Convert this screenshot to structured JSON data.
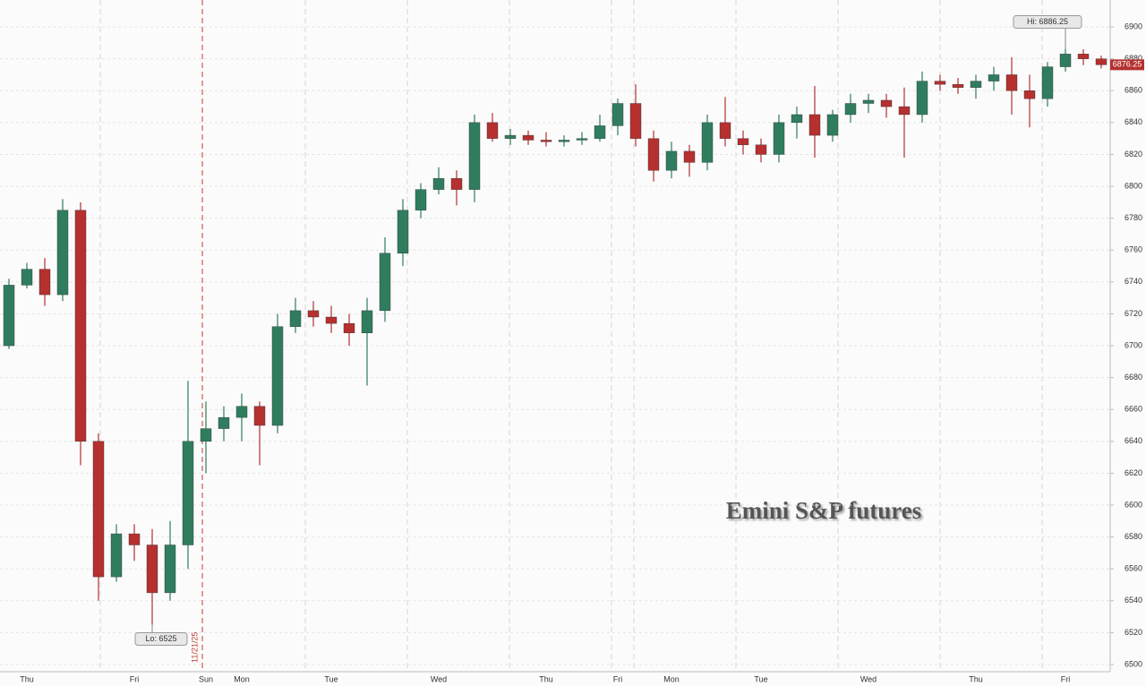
{
  "chart_data": {
    "type": "candlestick",
    "title": "Emini S&P futures",
    "categories": [
      null,
      "Thu",
      null,
      null,
      null,
      null,
      null,
      "Fri",
      null,
      null,
      null,
      "Sun",
      null,
      "Mon",
      null,
      null,
      null,
      null,
      "Tue",
      null,
      null,
      null,
      null,
      null,
      "Wed",
      null,
      null,
      null,
      null,
      null,
      "Thu",
      null,
      null,
      null,
      "Fri",
      null,
      null,
      "Mon",
      null,
      null,
      null,
      null,
      "Tue",
      null,
      null,
      null,
      null,
      null,
      "Wed",
      null,
      null,
      null,
      null,
      null,
      "Thu",
      null,
      null,
      null,
      null,
      "Fri",
      null,
      null
    ],
    "open": [
      6700,
      6738,
      6748,
      6732,
      6785,
      6640,
      6555,
      6582,
      6575,
      6545,
      6575,
      6640,
      6648,
      6655,
      6662,
      6650,
      6712,
      6722,
      6718,
      6714,
      6708,
      6722,
      6758,
      6785,
      6798,
      6805,
      6798,
      6840,
      6830,
      6832,
      6829,
      6828,
      6829,
      6830,
      6838,
      6852,
      6830,
      6810,
      6822,
      6815,
      6840,
      6830,
      6826,
      6820,
      6840,
      6845,
      6832,
      6845,
      6852,
      6854,
      6850,
      6845,
      6866,
      6864,
      6862,
      6866,
      6870,
      6860,
      6855,
      6875,
      6883,
      6880
    ],
    "high": [
      6742,
      6752,
      6755,
      6792,
      6790,
      6645,
      6588,
      6588,
      6585,
      6590,
      6678,
      6665,
      6662,
      6670,
      6665,
      6720,
      6730,
      6728,
      6725,
      6720,
      6730,
      6768,
      6792,
      6802,
      6812,
      6810,
      6845,
      6846,
      6836,
      6835,
      6834,
      6832,
      6834,
      6845,
      6855,
      6864,
      6835,
      6828,
      6826,
      6845,
      6856,
      6835,
      6830,
      6845,
      6850,
      6863,
      6848,
      6858,
      6858,
      6858,
      6862,
      6872,
      6870,
      6868,
      6870,
      6875,
      6881,
      6870,
      6878,
      6886.25,
      6886,
      6882
    ],
    "low": [
      6698,
      6736,
      6725,
      6728,
      6625,
      6540,
      6552,
      6565,
      6525,
      6540,
      6560,
      6620,
      6640,
      6640,
      6625,
      6645,
      6708,
      6712,
      6708,
      6700,
      6675,
      6715,
      6750,
      6780,
      6795,
      6788,
      6790,
      6828,
      6826,
      6826,
      6825,
      6825,
      6826,
      6828,
      6832,
      6825,
      6803,
      6805,
      6806,
      6810,
      6825,
      6820,
      6815,
      6815,
      6830,
      6818,
      6828,
      6840,
      6846,
      6843,
      6818,
      6840,
      6860,
      6858,
      6855,
      6860,
      6845,
      6837,
      6850,
      6872,
      6876,
      6874
    ],
    "close": [
      6738,
      6748,
      6732,
      6785,
      6640,
      6555,
      6582,
      6575,
      6545,
      6575,
      6640,
      6648,
      6655,
      6662,
      6650,
      6712,
      6722,
      6718,
      6714,
      6708,
      6722,
      6758,
      6785,
      6798,
      6805,
      6798,
      6840,
      6830,
      6832,
      6829,
      6828,
      6829,
      6830,
      6838,
      6852,
      6830,
      6810,
      6822,
      6815,
      6840,
      6830,
      6826,
      6820,
      6840,
      6845,
      6832,
      6845,
      6852,
      6854,
      6850,
      6845,
      6866,
      6864,
      6862,
      6866,
      6870,
      6860,
      6855,
      6875,
      6883,
      6880,
      6876.25
    ],
    "up_color": "#2f7d5e",
    "down_color": "#b5302f",
    "ylim": [
      6495.5,
      6916.9
    ],
    "yticks": [
      6500,
      6520,
      6540,
      6560,
      6580,
      6600,
      6620,
      6640,
      6660,
      6680,
      6700,
      6720,
      6740,
      6760,
      6780,
      6800,
      6820,
      6840,
      6860,
      6880,
      6900
    ],
    "grid": true,
    "annotations": [
      {
        "text": "Hi: 6886.25",
        "index": 59,
        "value": 6886.25
      },
      {
        "text": "Lo: 6525",
        "index": 8,
        "value": 6525
      }
    ],
    "date_marker": {
      "label": "11/21/25",
      "index": 11
    },
    "last_price": 6876.25
  }
}
